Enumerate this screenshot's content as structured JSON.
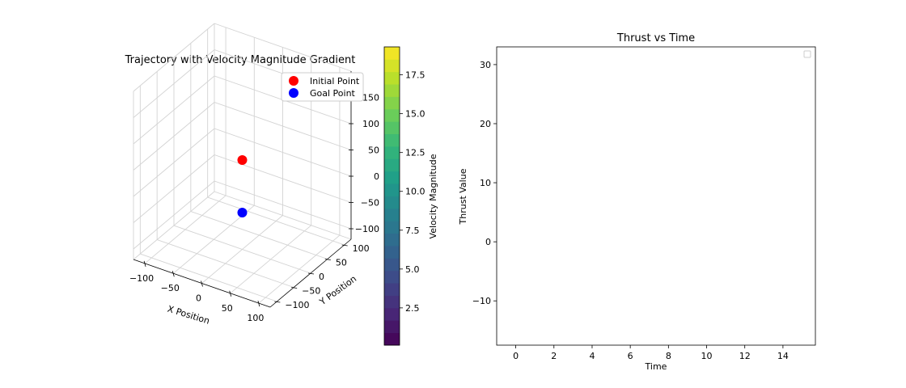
{
  "chart_data": [
    {
      "type": "scatter",
      "projection": "3d",
      "title": "Trajectory with Velocity Magnitude Gradient",
      "xlabel": "X Position",
      "ylabel": "Y Position",
      "zlabel": "",
      "xlim": [
        -120,
        120
      ],
      "ylim": [
        -120,
        120
      ],
      "zlim": [
        -120,
        200
      ],
      "xticks": [
        -100,
        -50,
        0,
        50,
        100
      ],
      "yticks": [
        -100,
        -50,
        0,
        50,
        100
      ],
      "zticks": [
        -100,
        -50,
        0,
        50,
        100,
        150
      ],
      "xtick_labels": [
        "−100",
        "−50",
        "0",
        "50",
        "100"
      ],
      "ytick_labels": [
        "−100",
        "−50",
        "0",
        "50",
        "100"
      ],
      "ztick_labels": [
        "−100",
        "−50",
        "0",
        "50",
        "100",
        "150"
      ],
      "grid": true,
      "legend_position": "top-right",
      "series": [
        {
          "name": "Initial Point",
          "color": "#ff0000",
          "points": [
            {
              "x": 0,
              "y": 0,
              "z": 50
            }
          ]
        },
        {
          "name": "Goal Point",
          "color": "#0000ff",
          "points": [
            {
              "x": 0,
              "y": 0,
              "z": -50
            }
          ]
        }
      ],
      "colorbar": {
        "label": "Velocity Magnitude",
        "colormap": "viridis",
        "range": [
          0.1,
          19.3
        ],
        "levels": 24,
        "ticks": [
          2.5,
          5.0,
          7.5,
          10.0,
          12.5,
          15.0,
          17.5
        ],
        "tick_labels": [
          "2.5",
          "5.0",
          "7.5",
          "10.0",
          "12.5",
          "15.0",
          "17.5"
        ]
      }
    },
    {
      "type": "line",
      "title": "Thrust vs Time",
      "xlabel": "Time",
      "ylabel": "Thrust Value",
      "xlim": [
        -1,
        15.7
      ],
      "ylim": [
        -17.5,
        33
      ],
      "xticks": [
        0,
        2,
        4,
        6,
        8,
        10,
        12,
        14
      ],
      "yticks": [
        -10,
        0,
        10,
        20,
        30
      ],
      "xtick_labels": [
        "0",
        "2",
        "4",
        "6",
        "8",
        "10",
        "12",
        "14"
      ],
      "ytick_labels": [
        "−10",
        "0",
        "10",
        "20",
        "30"
      ],
      "series": [],
      "legend_position": "top-right",
      "legend_entries": [],
      "grid": false
    }
  ]
}
